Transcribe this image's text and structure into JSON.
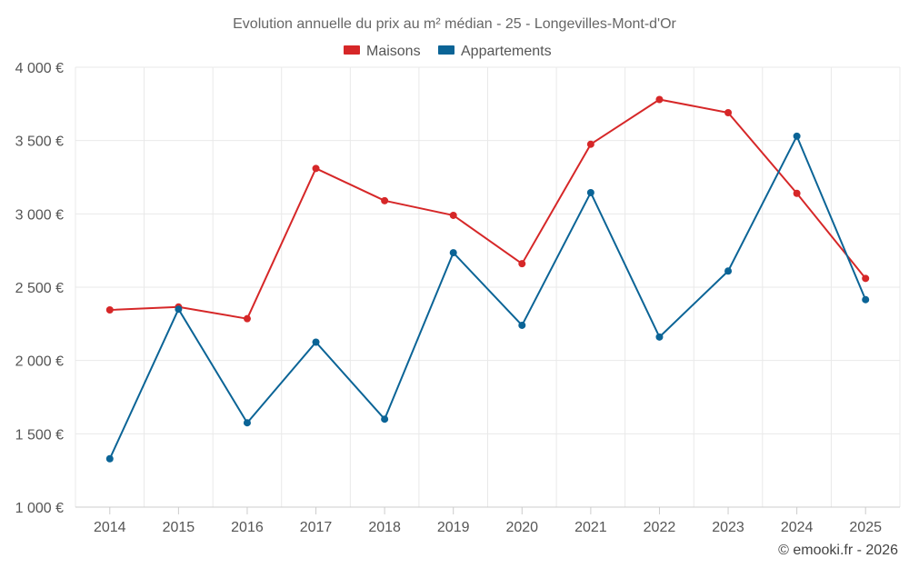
{
  "chart_data": {
    "type": "line",
    "title": "Evolution annuelle du prix au m² médian - 25 - Longevilles-Mont-d'Or",
    "categories": [
      "2014",
      "2015",
      "2016",
      "2017",
      "2018",
      "2019",
      "2020",
      "2021",
      "2022",
      "2023",
      "2024",
      "2025"
    ],
    "series": [
      {
        "name": "Maisons",
        "color": "#d62728",
        "values": [
          2345,
          2365,
          2285,
          3310,
          3090,
          2990,
          2660,
          3475,
          3780,
          3690,
          3140,
          2560
        ]
      },
      {
        "name": "Appartements",
        "color": "#0b6496",
        "values": [
          1330,
          2350,
          1575,
          2125,
          1600,
          2735,
          2240,
          3145,
          2160,
          2610,
          3530,
          2415
        ]
      }
    ],
    "ylim": [
      1000,
      4000
    ],
    "yticks": [
      1000,
      1500,
      2000,
      2500,
      3000,
      3500,
      4000
    ],
    "ytick_labels": [
      "1 000 €",
      "1 500 €",
      "2 000 €",
      "2 500 €",
      "3 000 €",
      "3 500 €",
      "4 000 €"
    ],
    "xlabel": "",
    "ylabel": "",
    "grid": true,
    "legend_position": "top-center"
  },
  "credit": "© emooki.fr - 2026"
}
